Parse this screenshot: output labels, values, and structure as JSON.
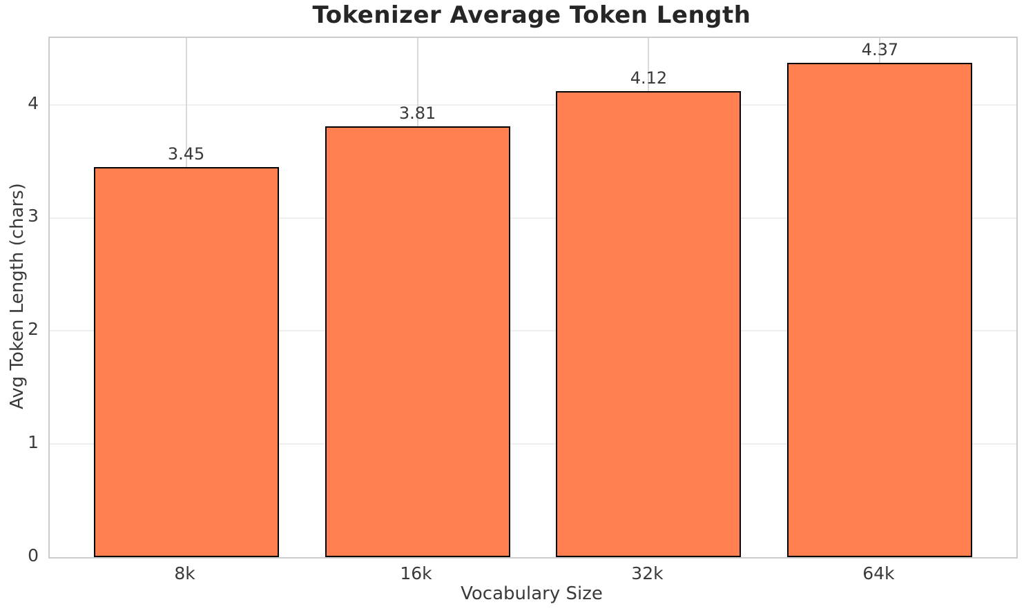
{
  "chart_data": {
    "type": "bar",
    "title": "Tokenizer Average Token Length",
    "xlabel": "Vocabulary Size",
    "ylabel": "Avg Token Length (chars)",
    "categories": [
      "8k",
      "16k",
      "32k",
      "64k"
    ],
    "values": [
      3.45,
      3.81,
      4.12,
      4.37
    ],
    "bar_labels": [
      "3.45",
      "3.81",
      "4.12",
      "4.37"
    ],
    "yticks": [
      0,
      1,
      2,
      3,
      4
    ],
    "ylim": [
      0,
      4.59
    ],
    "grid": true,
    "legend_position": "none",
    "colors": {
      "bar_fill": "#FF7F50",
      "bar_edge": "#000000",
      "horizontal_grid": "#efefef",
      "vertical_grid": "#d9d9d9",
      "spine": "#cccccc",
      "title_text": "#262626",
      "tick_text": "#3a3a3a"
    }
  }
}
